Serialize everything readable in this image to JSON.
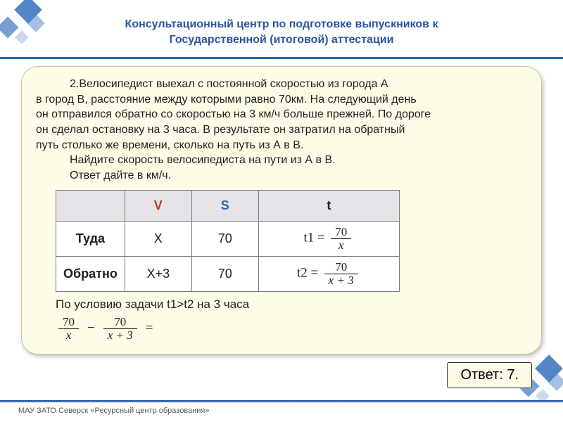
{
  "header": {
    "title_line1": "Консультационный центр по подготовке выпускников к",
    "title_line2": "Государственной (итоговой) аттестации"
  },
  "problem": {
    "line1": "2.Велосипедист выехал с постоянной скоростью из города А",
    "line2": "в город B, расстояние между которыми равно 70км. На следующий день",
    "line3": "он отправился обратно со скоростью на 3 км/ч больше прежней. По дороге",
    "line4": "он сделал остановку на 3 часа.     В результате он затратил на обратный",
    "line5": "путь столько же времени, сколько на путь из А в В.",
    "line6": "Найдите скорость велосипедиста на пути из А в В.",
    "line7": "Ответ дайте в км/ч."
  },
  "table": {
    "headers": {
      "col1": "",
      "V": "V",
      "S": "S",
      "t": "t"
    },
    "rows": [
      {
        "label": "Туда",
        "v": "Х",
        "s": "70",
        "t_lhs": "t1  =",
        "t_num": "70",
        "t_den": "x"
      },
      {
        "label": "Обратно",
        "v": "Х+3",
        "s": "70",
        "t_lhs": "t2  =",
        "t_num": "70",
        "t_den": "x + 3"
      }
    ]
  },
  "condition": "По условию задачи   t1>t2 на 3 часа",
  "equation": {
    "f1_num": "70",
    "f1_den": "x",
    "minus": "−",
    "f2_num": "70",
    "f2_den": "x + 3",
    "eq": "="
  },
  "answer": "Ответ: 7.",
  "footer": "МАУ ЗАТО Северск «Ресурсный центр образования»",
  "colors": {
    "accent": "#2955a0",
    "card_bg": "#fdfce6",
    "v_header": "#c0392b",
    "s_header": "#2e66b0"
  }
}
